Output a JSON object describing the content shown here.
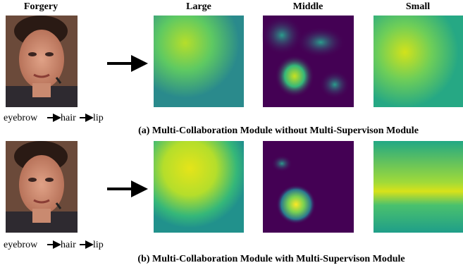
{
  "column_headers": [
    "Forgery",
    "Large",
    "Middle",
    "Small"
  ],
  "rows": [
    {
      "sequence": [
        "eyebrow",
        "hair",
        "lip"
      ],
      "caption": "(a) Multi-Collaboration Module without Multi-Supervison Module"
    },
    {
      "sequence": [
        "eyebrow",
        "hair",
        "lip"
      ],
      "caption": "(b) Multi-Collaboration Module with Multi-Supervison Module"
    }
  ]
}
